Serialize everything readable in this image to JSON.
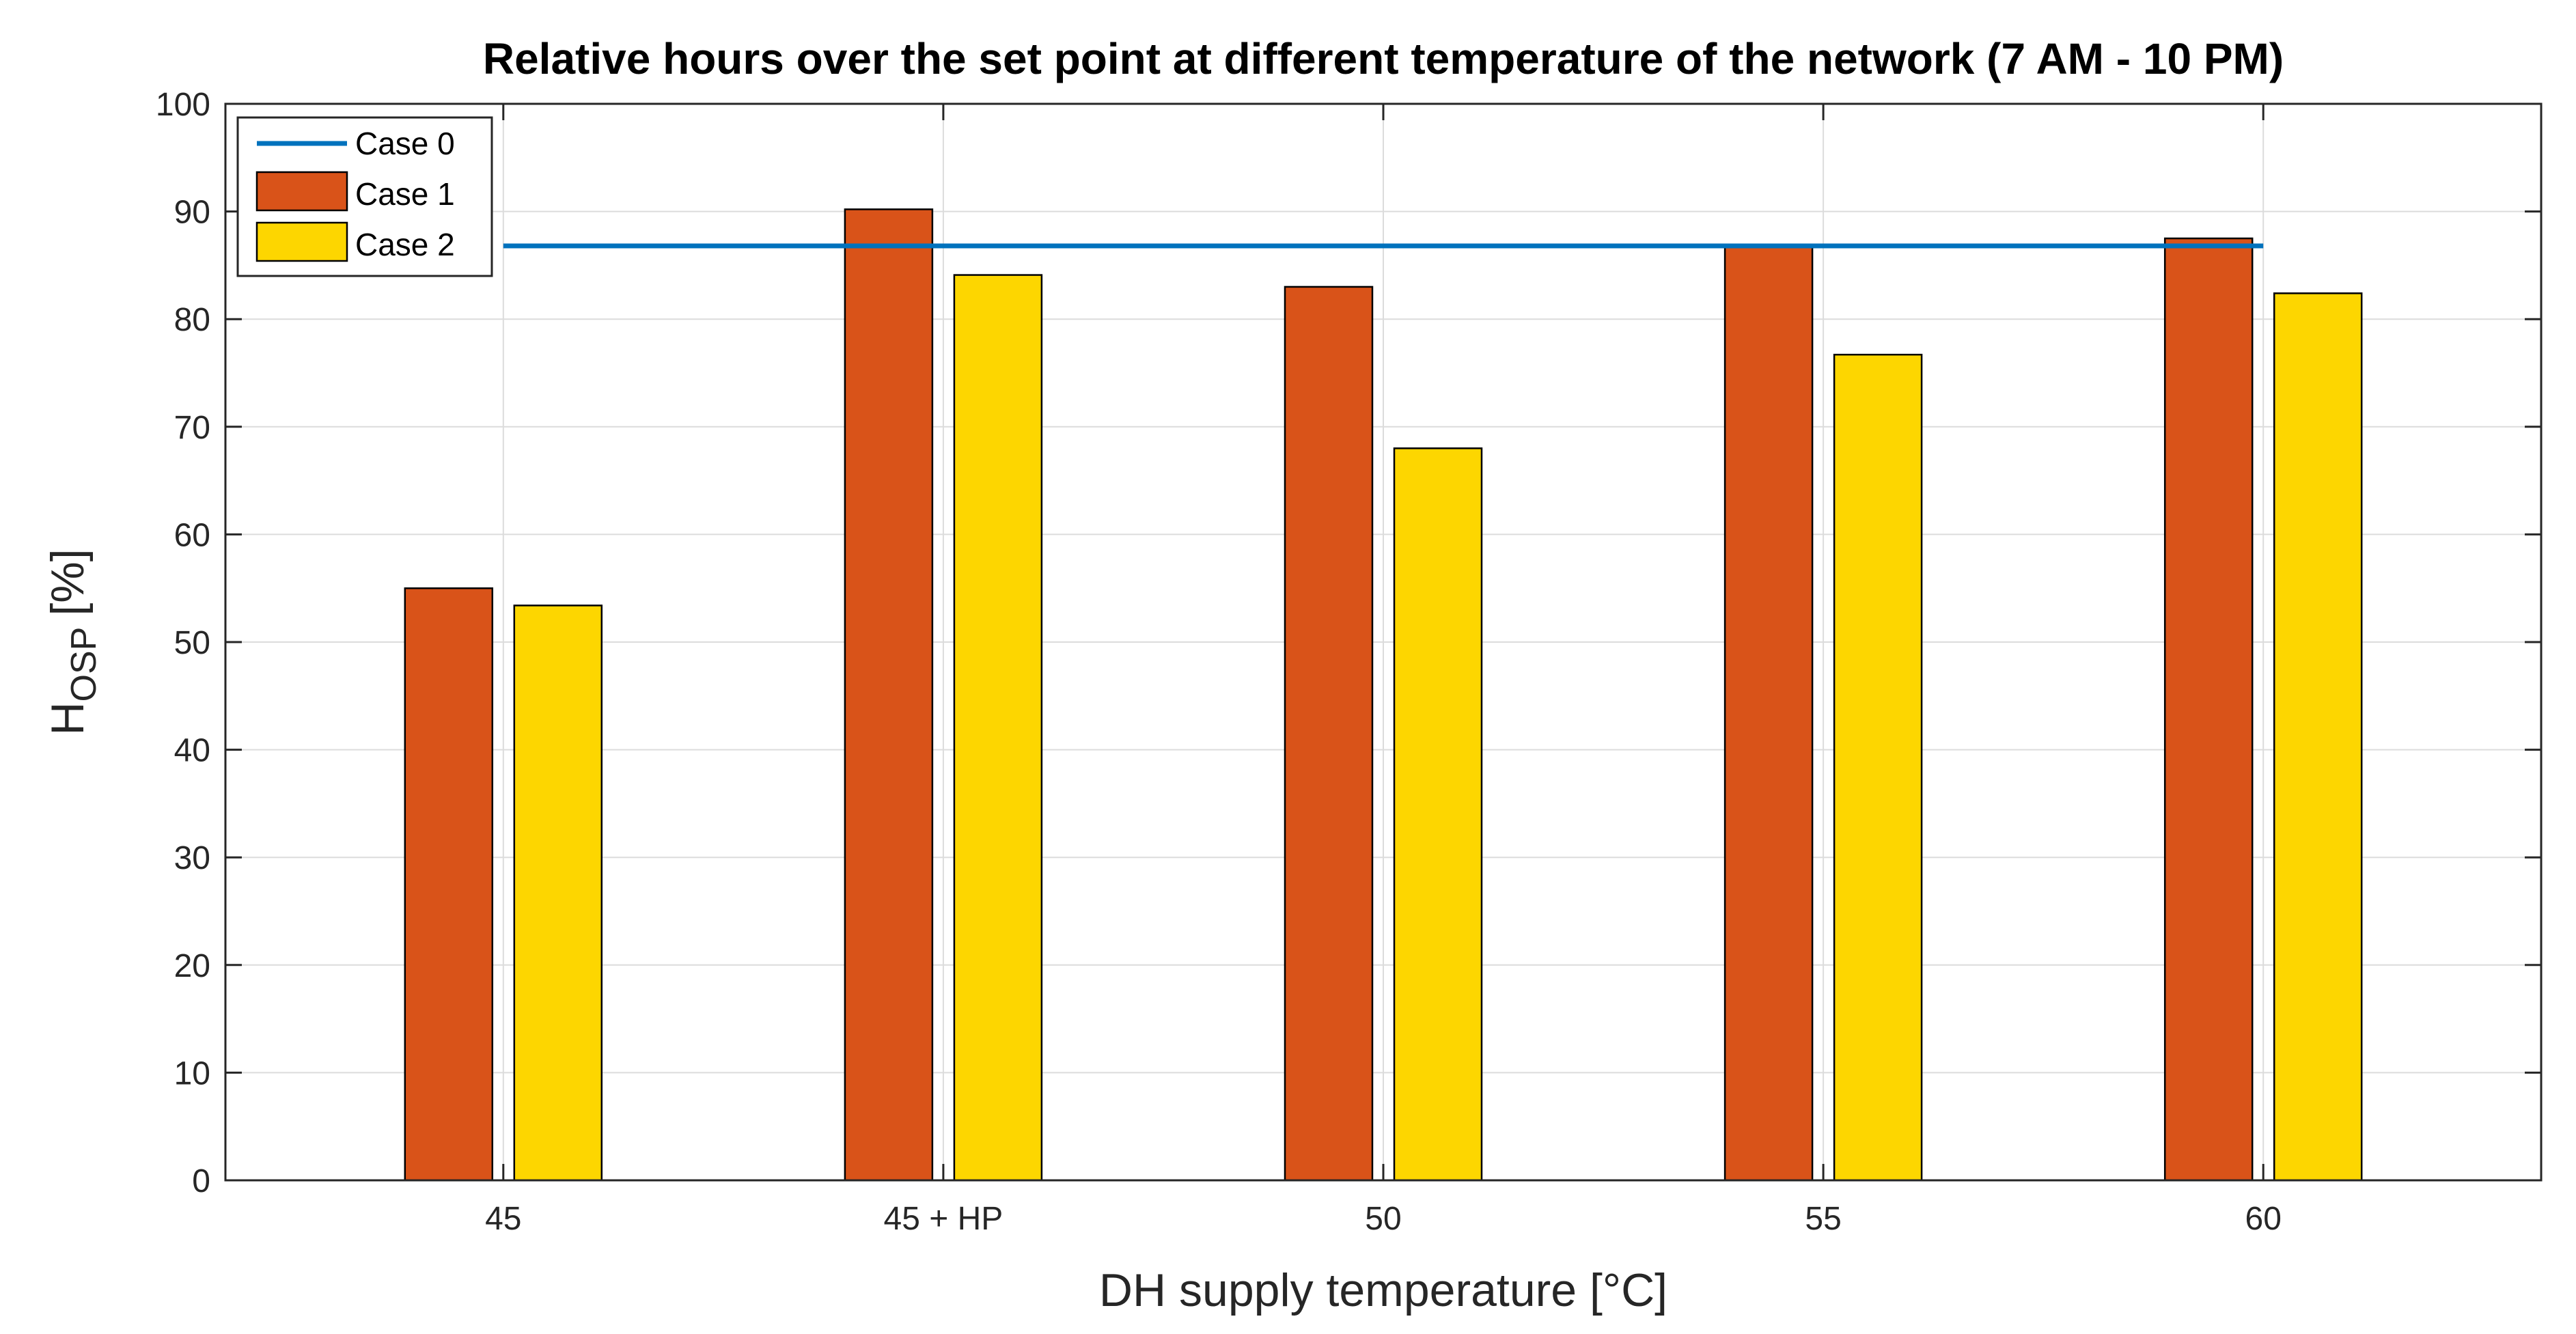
{
  "chart_data": {
    "type": "bar",
    "title": "Relative hours over the set point at different temperature of the network (7 AM - 10 PM)",
    "xlabel": "DH supply temperature [°C]",
    "ylabel": {
      "main": "H",
      "subscript": "OSP",
      "unit": "[%]"
    },
    "categories": [
      "45",
      "45 + HP",
      "50",
      "55",
      "60"
    ],
    "ylim": [
      0,
      100
    ],
    "yticks": [
      "0",
      "10",
      "20",
      "30",
      "40",
      "50",
      "60",
      "70",
      "80",
      "90",
      "100"
    ],
    "grid": true,
    "legend_position": "top-left",
    "series": [
      {
        "name": "Case 0",
        "kind": "line",
        "color": "#0072BD",
        "y": 86.8,
        "x_from": "45",
        "x_to": "60"
      },
      {
        "name": "Case 1",
        "kind": "bar",
        "color": "#D95319",
        "values": [
          55.0,
          90.2,
          83.0,
          86.8,
          87.5
        ]
      },
      {
        "name": "Case 2",
        "kind": "bar",
        "color": "#FDD600",
        "values": [
          53.4,
          84.1,
          68.0,
          76.7,
          82.4
        ]
      }
    ]
  }
}
